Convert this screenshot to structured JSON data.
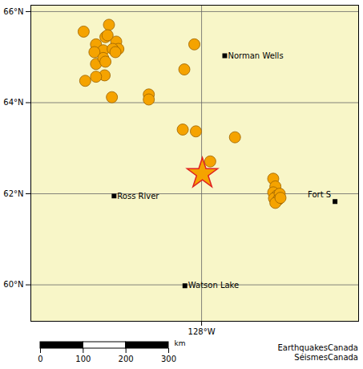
{
  "chart_data": {
    "type": "map",
    "xlim": [
      -136.7,
      -120
    ],
    "ylim": [
      59.2,
      66.14
    ],
    "xticks": [
      {
        "value": -128,
        "label": "128°W"
      }
    ],
    "yticks": [
      {
        "value": 60,
        "label": "60°N"
      },
      {
        "value": 62,
        "label": "62°N"
      },
      {
        "value": 64,
        "label": "64°N"
      },
      {
        "value": 66,
        "label": "66°N"
      }
    ],
    "grid": true,
    "earthquakes": {
      "color": "#f5a300",
      "lon": [
        -134.01,
        -132.72,
        -133.38,
        -132.9,
        -132.35,
        -132.24,
        -133.01,
        -133.46,
        -132.79,
        -133.38,
        -133.01,
        -132.53,
        -132.39,
        -132.9,
        -132.94,
        -133.38,
        -133.93,
        -132.57,
        -128.37,
        -128.88,
        -130.69,
        -130.69,
        -128.96,
        -128.29,
        -126.3,
        -127.56,
        -124.35,
        -124.24,
        -124.35,
        -124.16,
        -124.31,
        -124.02,
        -124.09,
        -124.24,
        -123.98
      ],
      "lat": [
        65.56,
        65.71,
        65.28,
        65.44,
        65.34,
        65.18,
        65.15,
        65.11,
        65.48,
        64.85,
        64.98,
        65.18,
        65.11,
        64.9,
        64.6,
        64.57,
        64.48,
        64.12,
        65.28,
        64.73,
        64.18,
        64.07,
        63.41,
        63.37,
        63.24,
        62.71,
        62.33,
        62.16,
        62.03,
        61.96,
        61.9,
        62.0,
        61.87,
        61.8,
        61.91
      ]
    },
    "epicenter": {
      "lon": -127.96,
      "lat": 62.44,
      "color": "#e02020",
      "marker": "star"
    },
    "cities": [
      {
        "name": "Norman Wells",
        "lon": -126.82,
        "lat": 65.03
      },
      {
        "name": "Ross River",
        "lon": -132.46,
        "lat": 61.95
      },
      {
        "name": "Fort S",
        "lon": -121.2,
        "lat": 61.83
      },
      {
        "name": "Watson Lake",
        "lon": -128.85,
        "lat": 59.98
      }
    ],
    "scale_bar": {
      "xlim": [
        0,
        300
      ],
      "xticks": [
        0,
        100,
        200,
        300
      ],
      "label": "km"
    },
    "credits": [
      "EarthquakesCanada",
      "SéismesCanada"
    ]
  }
}
